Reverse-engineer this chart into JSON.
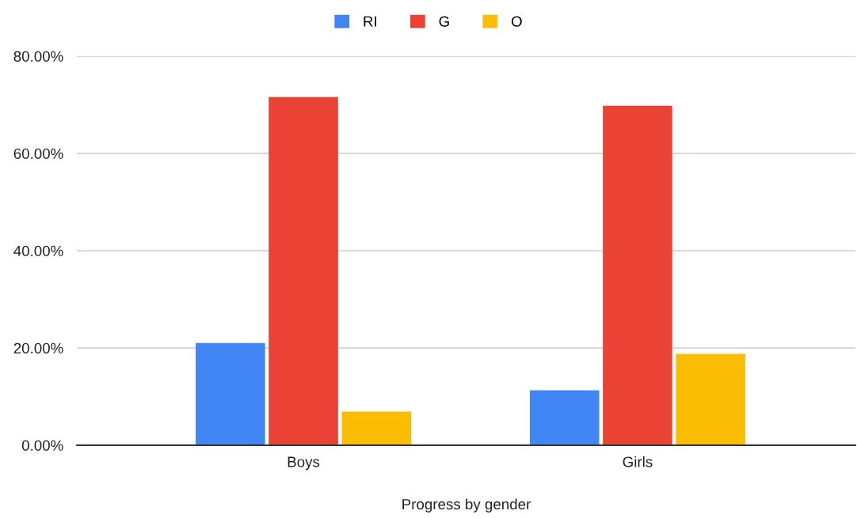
{
  "chart_data": {
    "type": "bar",
    "xlabel": "Progress by gender",
    "categories": [
      "Boys",
      "Girls"
    ],
    "series": [
      {
        "name": "RI",
        "color": "#4285f4",
        "values": [
          21.0,
          11.3
        ]
      },
      {
        "name": "G",
        "color": "#ea4335",
        "values": [
          71.6,
          69.8
        ]
      },
      {
        "name": "O",
        "color": "#fbbc04",
        "values": [
          6.9,
          18.8
        ]
      }
    ],
    "ylim": [
      0,
      80
    ],
    "yticks": [
      {
        "value": 0,
        "label": "0.00%"
      },
      {
        "value": 20,
        "label": "20.00%"
      },
      {
        "value": 40,
        "label": "40.00%"
      },
      {
        "value": 60,
        "label": "60.00%"
      },
      {
        "value": 80,
        "label": "80.00%"
      }
    ],
    "grid": "y",
    "legend": "top"
  }
}
